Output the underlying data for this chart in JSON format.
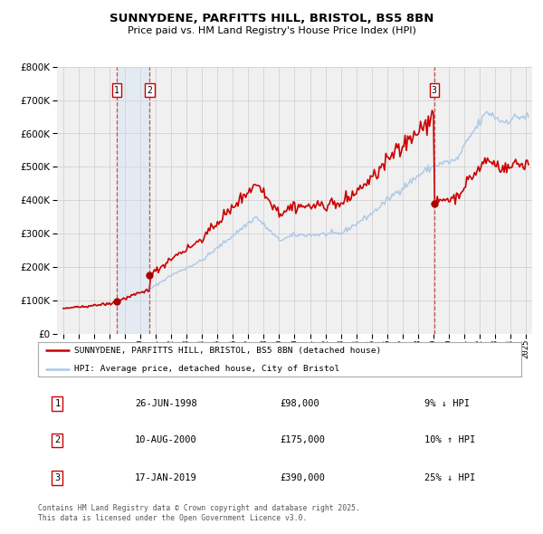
{
  "title": "SUNNYDENE, PARFITTS HILL, BRISTOL, BS5 8BN",
  "subtitle": "Price paid vs. HM Land Registry's House Price Index (HPI)",
  "legend_line1": "SUNNYDENE, PARFITTS HILL, BRISTOL, BS5 8BN (detached house)",
  "legend_line2": "HPI: Average price, detached house, City of Bristol",
  "footnote1": "Contains HM Land Registry data © Crown copyright and database right 2025.",
  "footnote2": "This data is licensed under the Open Government Licence v3.0.",
  "transactions": [
    {
      "num": 1,
      "date": "26-JUN-1998",
      "price": "£98,000",
      "hpi": "9% ↓ HPI",
      "x": 1998.48
    },
    {
      "num": 2,
      "date": "10-AUG-2000",
      "price": "£175,000",
      "hpi": "10% ↑ HPI",
      "x": 2000.61
    },
    {
      "num": 3,
      "date": "17-JAN-2019",
      "price": "£390,000",
      "hpi": "25% ↓ HPI",
      "x": 2019.04
    }
  ],
  "transaction_values": [
    98000,
    175000,
    390000
  ],
  "hpi_color": "#aac8e8",
  "price_color": "#cc0000",
  "marker_color": "#aa0000",
  "vline_color": "#cc3333",
  "shade_color": "#cce0f5",
  "background_color": "#f0f0f0",
  "grid_color": "#cccccc",
  "ylim": [
    0,
    800000
  ],
  "yticks": [
    0,
    100000,
    200000,
    300000,
    400000,
    500000,
    600000,
    700000,
    800000
  ],
  "xlim_start": 1994.6,
  "xlim_end": 2025.4,
  "hpi_anchors": {
    "1995.0": 75000,
    "1998.0": 90000,
    "2000.5": 130000,
    "2002.0": 175000,
    "2004.0": 220000,
    "2007.5": 350000,
    "2009.0": 280000,
    "2010.0": 295000,
    "2013.0": 300000,
    "2015.0": 360000,
    "2016.5": 420000,
    "2018.5": 490000,
    "2019.5": 510000,
    "2020.5": 520000,
    "2021.5": 600000,
    "2022.5": 665000,
    "2023.5": 635000,
    "2024.5": 650000
  }
}
